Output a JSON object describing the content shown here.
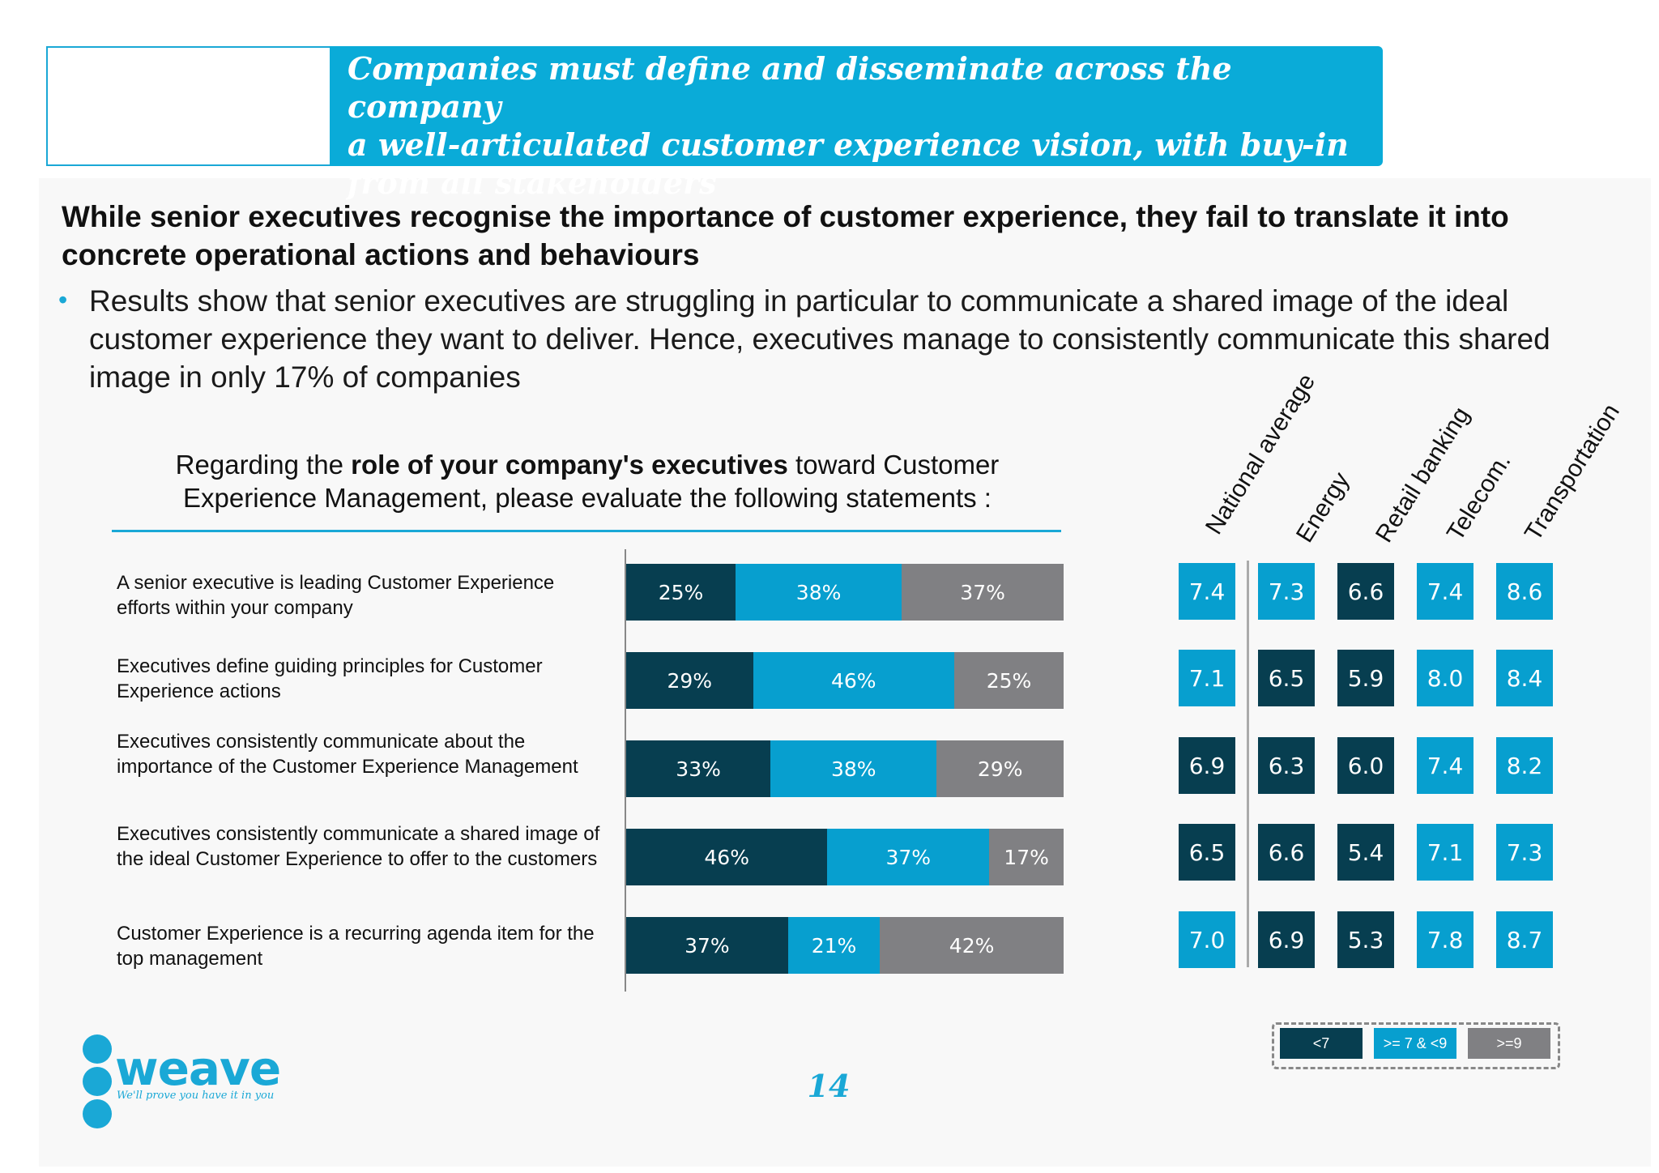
{
  "header": {
    "line1": "Companies must define and disseminate across the company",
    "line2": "a well-articulated customer experience vision, with buy-in",
    "line3": "from all stakeholders"
  },
  "subtitle": "While senior executives recognise the importance of customer experience, they fail to translate it into concrete operational actions and behaviours",
  "bullet": "Results show that senior executives are struggling in particular to communicate a shared image of the ideal customer experience they want to deliver. Hence, executives manage to consistently communicate this shared image in only 17% of companies",
  "question": {
    "pre": "Regarding the ",
    "bold": "role of your company's executives",
    "post": " toward Customer Experience Management, please evaluate the following statements :"
  },
  "colors": {
    "dark": "#073e50",
    "mid": "#079fcf",
    "grey": "#808083",
    "accent": "#1aa8d6"
  },
  "chart_data": [
    {
      "type": "bar",
      "orientation": "horizontal-stacked",
      "categories": [
        "A senior executive is leading Customer Experience efforts within your company",
        "Executives define guiding principles for Customer Experience actions",
        "Executives consistently communicate about the importance of the Customer Experience Management",
        "Executives consistently communicate a shared image of the ideal Customer Experience to offer to the customers",
        "Customer Experience is a recurring agenda item for the top management"
      ],
      "series": [
        {
          "color": "#073e50",
          "values": [
            25,
            29,
            33,
            46,
            37
          ]
        },
        {
          "color": "#079fcf",
          "values": [
            38,
            46,
            38,
            37,
            21
          ]
        },
        {
          "color": "#808083",
          "values": [
            37,
            25,
            29,
            17,
            42
          ]
        }
      ],
      "unit": "%"
    },
    {
      "type": "heatmap",
      "columns": [
        "National average",
        "Energy",
        "Retail banking",
        "Telecom.",
        "Transportation"
      ],
      "rows": [
        [
          "7.4",
          "7.3",
          "6.6",
          "7.4",
          "8.6"
        ],
        [
          "7.1",
          "6.5",
          "5.9",
          "8.0",
          "8.4"
        ],
        [
          "6.9",
          "6.3",
          "6.0",
          "7.4",
          "8.2"
        ],
        [
          "6.5",
          "6.6",
          "5.4",
          "7.1",
          "7.3"
        ],
        [
          "7.0",
          "6.9",
          "5.3",
          "7.8",
          "8.7"
        ]
      ],
      "legend": [
        {
          "label": "<7",
          "color": "#073e50"
        },
        {
          "label": ">= 7 & <9",
          "color": "#079fcf"
        },
        {
          "label": ">=9",
          "color": "#808083"
        }
      ]
    }
  ],
  "logo": {
    "word": "weave",
    "tagline": "We'll prove you have it in you"
  },
  "page_number": "14"
}
